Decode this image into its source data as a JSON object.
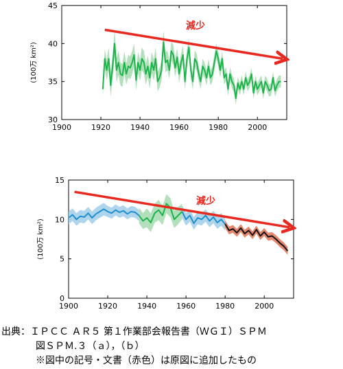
{
  "chart_data": [
    {
      "type": "line",
      "ylabel": "(100万 km²)",
      "xlim": [
        1900,
        2015
      ],
      "ylim": [
        30,
        45
      ],
      "xticks": [
        1900,
        1920,
        1940,
        1960,
        1980,
        2000
      ],
      "yticks": [
        30,
        35,
        40,
        45
      ],
      "annotation": "減少",
      "trend_arrow": {
        "from": [
          1922,
          41.8
        ],
        "to": [
          2013,
          38.0
        ],
        "color": "#e8291f"
      },
      "series": [
        {
          "color": "#1db34b",
          "band_color": "#a8ddb4",
          "x": [
            1921,
            1922,
            1923,
            1924,
            1925,
            1926,
            1927,
            1928,
            1929,
            1930,
            1931,
            1932,
            1933,
            1934,
            1935,
            1936,
            1937,
            1938,
            1939,
            1940,
            1941,
            1942,
            1943,
            1944,
            1945,
            1946,
            1947,
            1948,
            1949,
            1950,
            1951,
            1952,
            1953,
            1954,
            1955,
            1956,
            1957,
            1958,
            1959,
            1960,
            1961,
            1962,
            1963,
            1964,
            1965,
            1966,
            1967,
            1968,
            1969,
            1970,
            1971,
            1972,
            1973,
            1974,
            1975,
            1976,
            1977,
            1978,
            1979,
            1980,
            1981,
            1982,
            1983,
            1984,
            1985,
            1986,
            1987,
            1988,
            1989,
            1990,
            1991,
            1992,
            1993,
            1994,
            1995,
            1996,
            1997,
            1998,
            1999,
            2000,
            2001,
            2002,
            2003,
            2004,
            2005,
            2006,
            2007,
            2008,
            2009,
            2010,
            2011,
            2012
          ],
          "values": [
            34.0,
            38.0,
            36.5,
            38.0,
            34.5,
            37.0,
            40.0,
            36.5,
            37.5,
            36.0,
            35.8,
            37.5,
            36.0,
            37.0,
            36.8,
            37.5,
            38.5,
            35.2,
            37.5,
            36.5,
            38.0,
            37.5,
            36.0,
            37.0,
            35.5,
            37.5,
            36.5,
            38.0,
            35.0,
            35.5,
            36.5,
            40.2,
            37.5,
            37.8,
            36.5,
            39.0,
            38.5,
            36.8,
            38.2,
            36.0,
            37.5,
            38.5,
            35.0,
            38.0,
            39.5,
            36.5,
            35.0,
            38.0,
            37.5,
            36.0,
            35.0,
            37.0,
            36.5,
            35.5,
            37.0,
            35.5,
            36.0,
            37.5,
            39.0,
            38.0,
            36.5,
            38.0,
            35.5,
            36.0,
            34.0,
            36.0,
            35.0,
            34.5,
            32.8,
            34.8,
            34.0,
            35.0,
            34.0,
            35.5,
            34.5,
            35.0,
            36.0,
            33.5,
            35.0,
            34.0,
            34.5,
            35.0,
            33.5,
            35.0,
            34.5,
            33.8,
            34.0,
            35.5,
            33.8,
            34.5,
            35.0,
            35.0
          ],
          "band": [
            0.9,
            1.3,
            1.4,
            1.5,
            1.5,
            1.6,
            1.8,
            1.6,
            1.6,
            1.5,
            1.5,
            1.5,
            1.4,
            1.5,
            1.5,
            1.5,
            1.5,
            1.4,
            1.4,
            1.4,
            1.5,
            1.5,
            1.4,
            1.4,
            1.4,
            1.4,
            1.4,
            1.5,
            1.3,
            1.3,
            1.3,
            1.5,
            1.3,
            1.3,
            1.2,
            1.3,
            1.3,
            1.2,
            1.2,
            1.2,
            1.2,
            1.2,
            1.1,
            1.2,
            1.2,
            1.1,
            1.1,
            1.1,
            1.1,
            1.0,
            1.0,
            1.0,
            1.0,
            1.0,
            1.0,
            1.0,
            1.0,
            1.0,
            1.0,
            1.0,
            1.0,
            1.0,
            0.9,
            0.9,
            0.9,
            0.9,
            0.9,
            0.9,
            0.9,
            0.8,
            0.8,
            0.8,
            0.8,
            0.8,
            0.8,
            0.8,
            0.8,
            0.8,
            0.8,
            0.8,
            0.8,
            0.8,
            0.8,
            0.8,
            0.8,
            0.8,
            0.8,
            0.8,
            0.8,
            0.8,
            0.8,
            0.8
          ]
        }
      ]
    },
    {
      "type": "line",
      "ylabel": "(100万 km²)",
      "xlim": [
        1900,
        2015
      ],
      "ylim": [
        0,
        15
      ],
      "xticks": [
        1900,
        1920,
        1940,
        1960,
        1980,
        2000
      ],
      "yticks": [
        0,
        5,
        10,
        15
      ],
      "annotation": "減少",
      "trend_arrow": {
        "from": [
          1903,
          13.5
        ],
        "to": [
          2013,
          9.0
        ],
        "color": "#e8291f"
      },
      "series": [
        {
          "color": "#1d8fd1",
          "band_color": "#a6d0ea",
          "x": [
            1900,
            1902,
            1904,
            1906,
            1908,
            1910,
            1912,
            1914,
            1916,
            1918,
            1920,
            1922,
            1924,
            1926,
            1928,
            1930,
            1932,
            1934,
            1936
          ],
          "values": [
            10.2,
            10.6,
            10.0,
            10.4,
            10.3,
            10.8,
            10.2,
            10.7,
            11.0,
            11.3,
            11.0,
            10.8,
            11.2,
            10.9,
            11.1,
            10.7,
            11.0,
            10.9,
            10.5
          ],
          "band": [
            0.8,
            0.8,
            0.8,
            0.8,
            0.8,
            0.8,
            0.8,
            0.8,
            0.8,
            0.8,
            0.7,
            0.7,
            0.7,
            0.7,
            0.7,
            0.7,
            0.7,
            0.7,
            0.7
          ]
        },
        {
          "color": "#1db34b",
          "band_color": "#a8ddb4",
          "x": [
            1936,
            1938,
            1940,
            1942,
            1944,
            1946,
            1948,
            1950,
            1952,
            1954,
            1956,
            1958
          ],
          "values": [
            10.5,
            9.8,
            10.2,
            9.6,
            10.8,
            11.2,
            10.5,
            12.0,
            11.5,
            10.0,
            10.5,
            11.0
          ],
          "band": [
            1.0,
            1.0,
            1.2,
            1.2,
            1.2,
            1.3,
            1.2,
            1.2,
            1.2,
            1.1,
            1.1,
            1.0
          ]
        },
        {
          "color": "#1d8fd1",
          "band_color": "#a6d0ea",
          "x": [
            1958,
            1960,
            1962,
            1964,
            1966,
            1968,
            1970,
            1972,
            1974,
            1976,
            1978,
            1980
          ],
          "values": [
            11.0,
            10.0,
            10.5,
            9.5,
            10.2,
            10.0,
            10.5,
            9.8,
            10.3,
            9.6,
            10.0,
            9.4
          ],
          "band": [
            0.8,
            0.8,
            0.8,
            0.8,
            0.8,
            0.8,
            0.8,
            0.8,
            0.8,
            0.8,
            0.8,
            0.8
          ]
        },
        {
          "color": "#111111",
          "band_color": "#e37b5e",
          "x": [
            1980,
            1982,
            1984,
            1986,
            1988,
            1990,
            1992,
            1994,
            1996,
            1998,
            2000,
            2002,
            2004,
            2006,
            2008,
            2010,
            2012
          ],
          "values": [
            9.4,
            8.6,
            8.8,
            8.3,
            8.9,
            8.2,
            8.6,
            8.0,
            8.7,
            7.9,
            8.4,
            7.8,
            7.9,
            7.5,
            7.0,
            6.6,
            6.0
          ],
          "band": [
            0.5,
            0.5,
            0.5,
            0.5,
            0.5,
            0.5,
            0.5,
            0.5,
            0.5,
            0.5,
            0.5,
            0.5,
            0.5,
            0.5,
            0.5,
            0.5,
            0.5
          ]
        }
      ]
    }
  ],
  "caption": {
    "line1": "出典：ＩＰＣＣ ＡＲ５ 第１作業部会報告書（ＷＧＩ）ＳＰＭ",
    "line2": "図ＳＰＭ.３（ａ），（ｂ）",
    "line3": "※図中の記号・文書（赤色）は原図に追加したもの"
  }
}
